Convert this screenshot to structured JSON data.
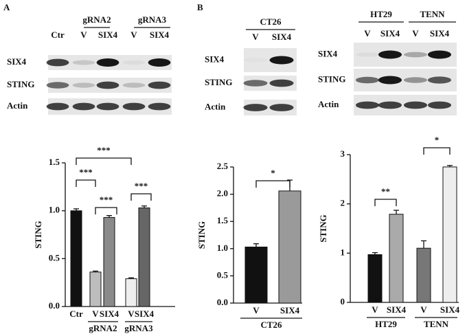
{
  "panel_labels": [
    "A",
    "B"
  ],
  "blots": [
    {
      "groups": [
        "gRNA2",
        "gRNA3"
      ],
      "lanes": [
        "Ctr",
        "V",
        "SIX4",
        "V",
        "SIX4"
      ],
      "rows": [
        "SIX4",
        "STING",
        "Actin"
      ]
    },
    {
      "groups": [
        "CT26"
      ],
      "lanes": [
        "V",
        "SIX4"
      ],
      "rows": [
        "SIX4",
        "STING",
        "Actin"
      ]
    },
    {
      "groups": [
        "HT29",
        "TENN"
      ],
      "lanes": [
        "V",
        "SIX4",
        "V",
        "SIX4"
      ],
      "rows": [
        "SIX4",
        "STING",
        "Actin"
      ]
    }
  ],
  "chart_data": [
    {
      "type": "bar",
      "y_label": "STING",
      "categories": [
        "Ctr",
        "V",
        "SIX4",
        "V",
        "SIX4"
      ],
      "groups": [
        "gRNA2",
        "gRNA3"
      ],
      "values": [
        1.0,
        0.36,
        0.93,
        0.29,
        1.03
      ],
      "errors": [
        0.02,
        0.01,
        0.02,
        0.01,
        0.02
      ],
      "colors": [
        "#111111",
        "#bdbdbd",
        "#8a8a8a",
        "#eeeeee",
        "#666666"
      ],
      "ylim": [
        0,
        1.5
      ],
      "yticks": [
        {
          "value": 0,
          "label": "0.0"
        },
        0.5,
        {
          "value": 1,
          "label": "1.0"
        },
        1.5
      ],
      "annotations": [
        "***",
        "***",
        "***",
        "***"
      ]
    },
    {
      "type": "bar",
      "y_label": "STING",
      "categories": [
        "V",
        "SIX4"
      ],
      "groups": [
        "CT26"
      ],
      "values": [
        1.03,
        2.06
      ],
      "errors": [
        0.06,
        0.2
      ],
      "colors": [
        "#111111",
        "#9a9a9a"
      ],
      "ylim": [
        0,
        2.5
      ],
      "yticks": [
        {
          "value": 0,
          "label": "0.0"
        },
        0.5,
        {
          "value": 1,
          "label": "1.0"
        },
        1.5,
        {
          "value": 2,
          "label": "2.0"
        },
        2.5
      ],
      "annotations": [
        "*"
      ]
    },
    {
      "type": "bar",
      "y_label": "STING",
      "categories": [
        "V",
        "SIX4",
        "V",
        "SIX4"
      ],
      "groups": [
        "HT29",
        "TENN"
      ],
      "values": [
        0.97,
        1.79,
        1.1,
        2.75
      ],
      "errors": [
        0.04,
        0.08,
        0.15,
        0.03
      ],
      "colors": [
        "#111111",
        "#aaaaaa",
        "#777777",
        "#eeeeee"
      ],
      "ylim": [
        0,
        3
      ],
      "yticks": [
        0,
        1,
        2,
        3
      ],
      "annotations": [
        "**",
        "*"
      ]
    }
  ]
}
